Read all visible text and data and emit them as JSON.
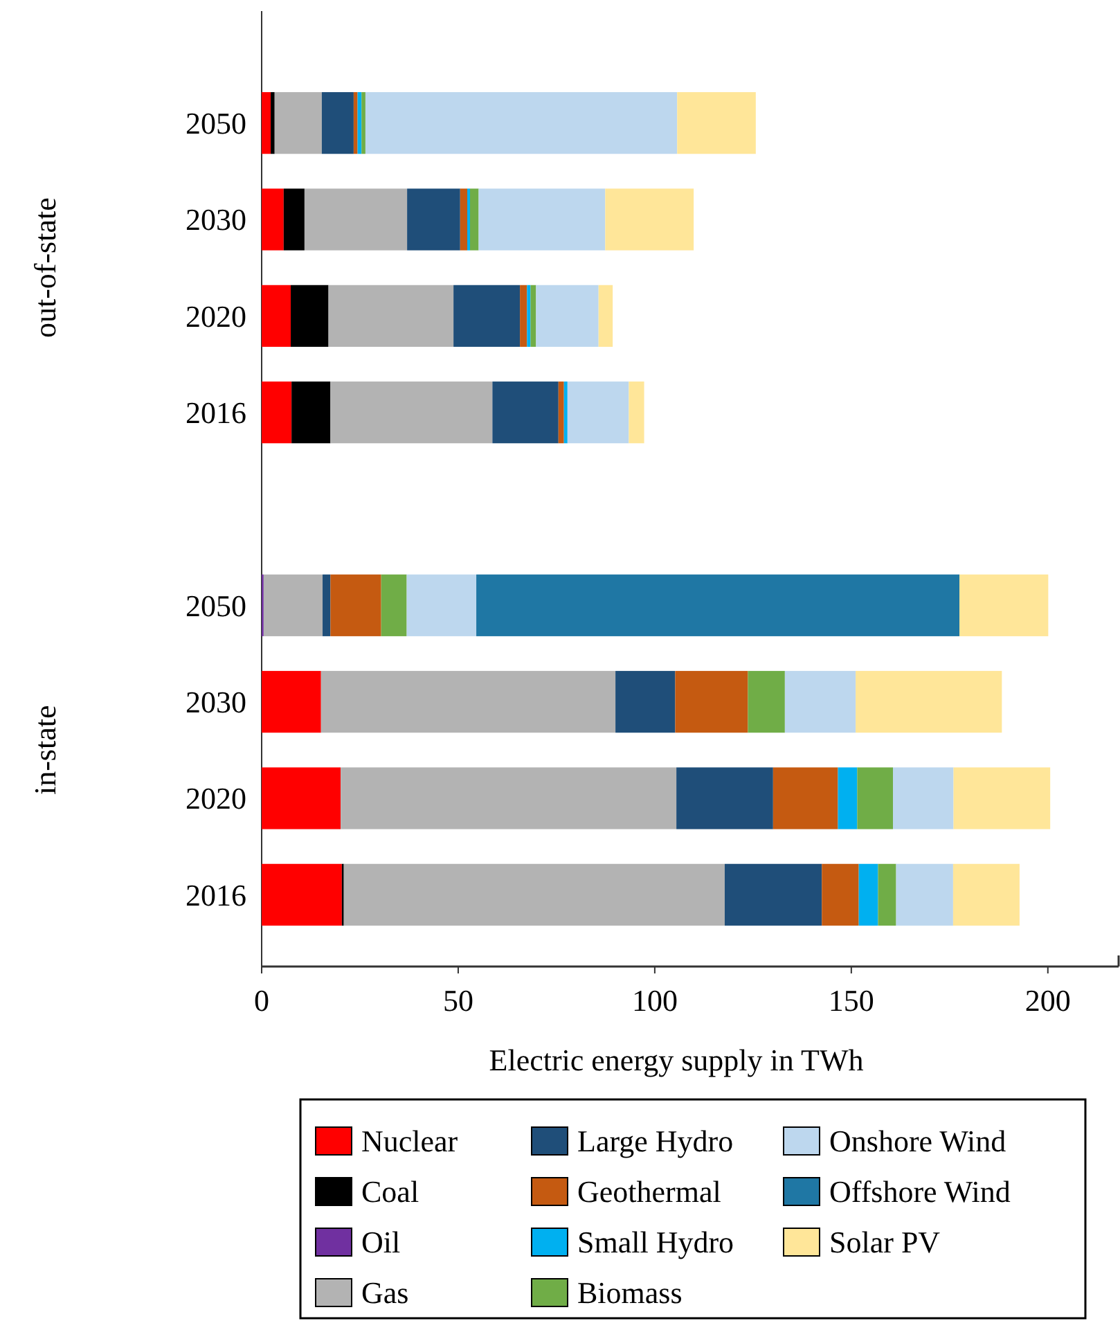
{
  "chart_data": {
    "type": "bar",
    "orientation": "horizontal",
    "stacked": true,
    "xlabel": "Electric energy supply in TWh",
    "categories": [
      "2050",
      "2030",
      "2020",
      "2016",
      null,
      "2050",
      "2030",
      "2020",
      "2016"
    ],
    "xlim": [
      0,
      218
    ],
    "xticks": [
      0,
      50,
      100,
      150,
      200
    ],
    "grid": false,
    "legend": "bottom",
    "annotations": [
      "out-of-state",
      "in-state"
    ],
    "series": [
      {
        "name": "Nuclear",
        "color": "#ff0000",
        "values": [
          2.3,
          5.6,
          7.4,
          7.6,
          null,
          0,
          15.1,
          20.1,
          20.4
        ]
      },
      {
        "name": "Coal",
        "color": "#000000",
        "values": [
          1.0,
          5.3,
          9.6,
          9.9,
          null,
          0,
          0,
          0,
          0.5
        ]
      },
      {
        "name": "Oil",
        "color": "#7030a0",
        "values": [
          0,
          0,
          0,
          0,
          null,
          0.5,
          0,
          0,
          0
        ]
      },
      {
        "name": "Gas",
        "color": "#b3b3b3",
        "values": [
          12,
          26.1,
          31.8,
          41.2,
          null,
          15,
          74.9,
          85.4,
          96.9
        ]
      },
      {
        "name": "Large Hydro",
        "color": "#1f4e79",
        "values": [
          8.1,
          13.5,
          16.9,
          16.8,
          null,
          2.0,
          15.2,
          24.6,
          24.7
        ]
      },
      {
        "name": "Geothermal",
        "color": "#c55a11",
        "values": [
          1.0,
          1.8,
          1.8,
          1.4,
          null,
          12.9,
          18.5,
          16.5,
          9.4
        ]
      },
      {
        "name": "Small Hydro",
        "color": "#00b0f0",
        "values": [
          1.0,
          0.7,
          0.9,
          0.9,
          null,
          0,
          0,
          4.9,
          4.9
        ]
      },
      {
        "name": "Biomass",
        "color": "#70ad47",
        "values": [
          1.0,
          2.2,
          1.4,
          0,
          null,
          6.5,
          9.4,
          9.1,
          4.6
        ]
      },
      {
        "name": "Onshore Wind",
        "color": "#bdd7ee",
        "values": [
          79.3,
          32.2,
          15.9,
          15.6,
          null,
          17.7,
          18,
          15.4,
          14.5
        ]
      },
      {
        "name": "Offshore Wind",
        "color": "#1f77a4",
        "values": [
          0,
          0,
          0,
          0,
          null,
          122.9,
          0,
          0,
          0
        ]
      },
      {
        "name": "Solar PV",
        "color": "#ffe699",
        "values": [
          20,
          22.5,
          3.6,
          3.9,
          null,
          22.6,
          37.2,
          24.6,
          16.9
        ]
      }
    ]
  }
}
